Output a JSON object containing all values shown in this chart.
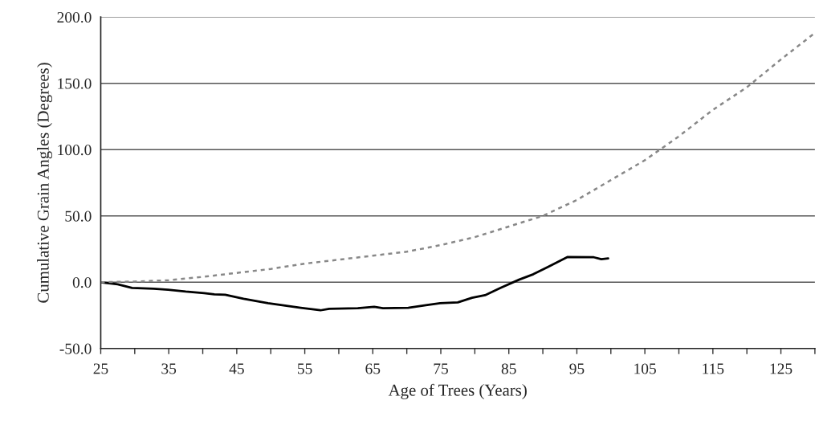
{
  "chart_data": {
    "type": "line",
    "xlabel": "Age of Trees (Years)",
    "ylabel": "Cumulative Grain Angles (Degrees)",
    "series": [
      {
        "color": "#000000",
        "line_style": "solid",
        "x": [
          25,
          27.5,
          29.6,
          32.8,
          34.9,
          37.5,
          40.2,
          41.7,
          43.3,
          46,
          49.6,
          51.7,
          54.4,
          57.3,
          58.6,
          62.8,
          65.2,
          66.5,
          70.2,
          72.8,
          74.9,
          77.5,
          79.6,
          81.5,
          83.8,
          86.5,
          88.6,
          90.7,
          93.6,
          97.5,
          98.6,
          99.6
        ],
        "values": [
          0,
          -1.6,
          -4.3,
          -4.9,
          -5.7,
          -7.1,
          -8.2,
          -9.2,
          -9.5,
          -12.5,
          -15.8,
          -17.4,
          -19.3,
          -21.2,
          -20,
          -19.6,
          -18.5,
          -19.6,
          -19.3,
          -17.4,
          -15.8,
          -15.2,
          -11.7,
          -9.8,
          -4.3,
          1.9,
          6,
          11.4,
          19,
          18.8,
          17.4,
          17.9
        ]
      },
      {
        "color": "#888888",
        "line_style": "dashed",
        "x": [
          25,
          30,
          35,
          40,
          45,
          50,
          55,
          60,
          65,
          70,
          75,
          80,
          85,
          90,
          95,
          100,
          105,
          110,
          115,
          120,
          125,
          130
        ],
        "values": [
          0,
          0.5,
          1.5,
          4,
          7,
          10,
          14,
          17,
          20,
          23,
          28,
          34,
          42,
          50,
          62,
          77,
          92,
          110,
          130,
          147,
          168,
          188
        ]
      }
    ],
    "xlim": [
      25,
      130
    ],
    "xticks": [
      25,
      {
        "value": 30,
        "label": null
      },
      35,
      {
        "value": 40,
        "label": null
      },
      45,
      {
        "value": 50,
        "label": null
      },
      55,
      {
        "value": 60,
        "label": null
      },
      65,
      {
        "value": 70,
        "label": null
      },
      75,
      {
        "value": 80,
        "label": null
      },
      85,
      {
        "value": 90,
        "label": null
      },
      95,
      {
        "value": 100,
        "label": null
      },
      105,
      {
        "value": 110,
        "label": null
      },
      115,
      {
        "value": 120,
        "label": null
      },
      125,
      {
        "value": 130,
        "label": null
      }
    ],
    "ylim": [
      -50,
      200
    ],
    "yticks": [
      {
        "value": -50,
        "label": "-50.0"
      },
      {
        "value": 0,
        "label": "0.0"
      },
      {
        "value": 50,
        "label": "50.0"
      },
      {
        "value": 100,
        "label": "100.0"
      },
      {
        "value": 150,
        "label": "150.0"
      },
      {
        "value": 200,
        "label": "200.0"
      }
    ],
    "grid": "y",
    "marker": "none"
  }
}
